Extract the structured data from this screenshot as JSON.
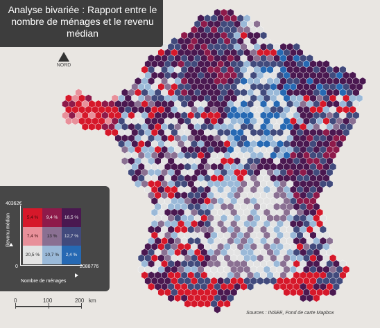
{
  "title": "Analyse bivariée : Rapport entre le nombre de ménages et le revenu médian",
  "north_label": "NORD",
  "legend": {
    "y_max_label": "40362€",
    "y_axis_label": "Revenu médian",
    "x_axis_label": "Nombre de ménages",
    "zero_label": "0",
    "x_max_label": "2088776",
    "cells": [
      {
        "value": "5,4 %",
        "color": "#d6182a",
        "text_color": "#3a0a0a"
      },
      {
        "value": "9,4 %",
        "color": "#8e1a4a",
        "text_color": "#f2f2f2"
      },
      {
        "value": "16,5 %",
        "color": "#4a1850",
        "text_color": "#f2f2f2"
      },
      {
        "value": "7,4 %",
        "color": "#e8909a",
        "text_color": "#3a0a0a"
      },
      {
        "value": "13 %",
        "color": "#8a7092",
        "text_color": "#1a1a1a"
      },
      {
        "value": "12,7 %",
        "color": "#414a7c",
        "text_color": "#f2f2f2"
      },
      {
        "value": "20,5 %",
        "color": "#e3e3e3",
        "text_color": "#1a1a1a"
      },
      {
        "value": "10,7 %",
        "color": "#9ab9d8",
        "text_color": "#1a1a1a"
      },
      {
        "value": "2,4 %",
        "color": "#2669b3",
        "text_color": "#f2f2f2"
      }
    ]
  },
  "scale": {
    "labels": [
      "0",
      "100",
      "200"
    ],
    "unit": "km"
  },
  "source": "Sources : INSEE, Fond de carte Mapbox",
  "colors": {
    "background": "#e9e6e2",
    "panel": "#474747",
    "high_income_low_households": "#d6182a",
    "high_income_high_households": "#4a1850",
    "low_income_high_households": "#2669b3",
    "low_income_low_households": "#e3e3e3"
  }
}
